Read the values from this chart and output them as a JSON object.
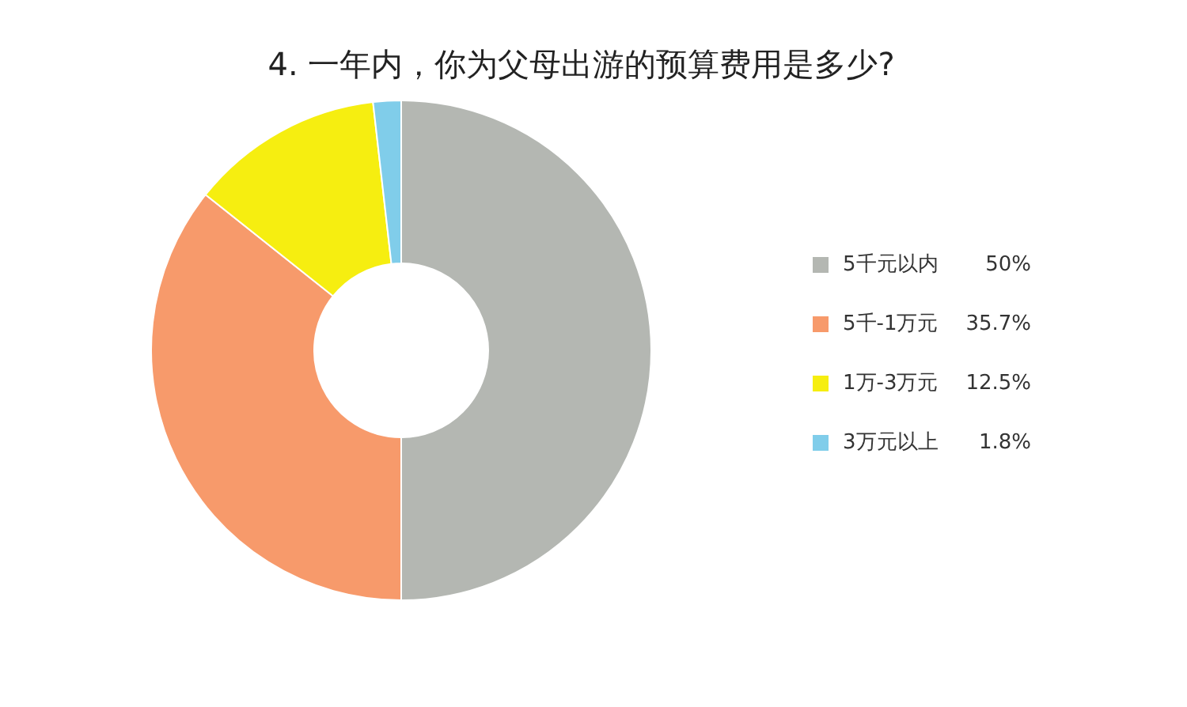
{
  "chart_data": {
    "type": "donut",
    "title": "4.  一年内，你为父母出游的预算费用是多少?",
    "categories": [
      "5千元以内",
      "5千-1万元",
      "1万-3万元",
      "3万元以上"
    ],
    "values": [
      50,
      35.7,
      12.5,
      1.8
    ],
    "value_labels": [
      "50%",
      "35.7%",
      "12.5%",
      "1.8%"
    ],
    "colors": [
      "#b4b7b2",
      "#f79a6b",
      "#f6ee10",
      "#80cdea"
    ],
    "legend": "right"
  }
}
